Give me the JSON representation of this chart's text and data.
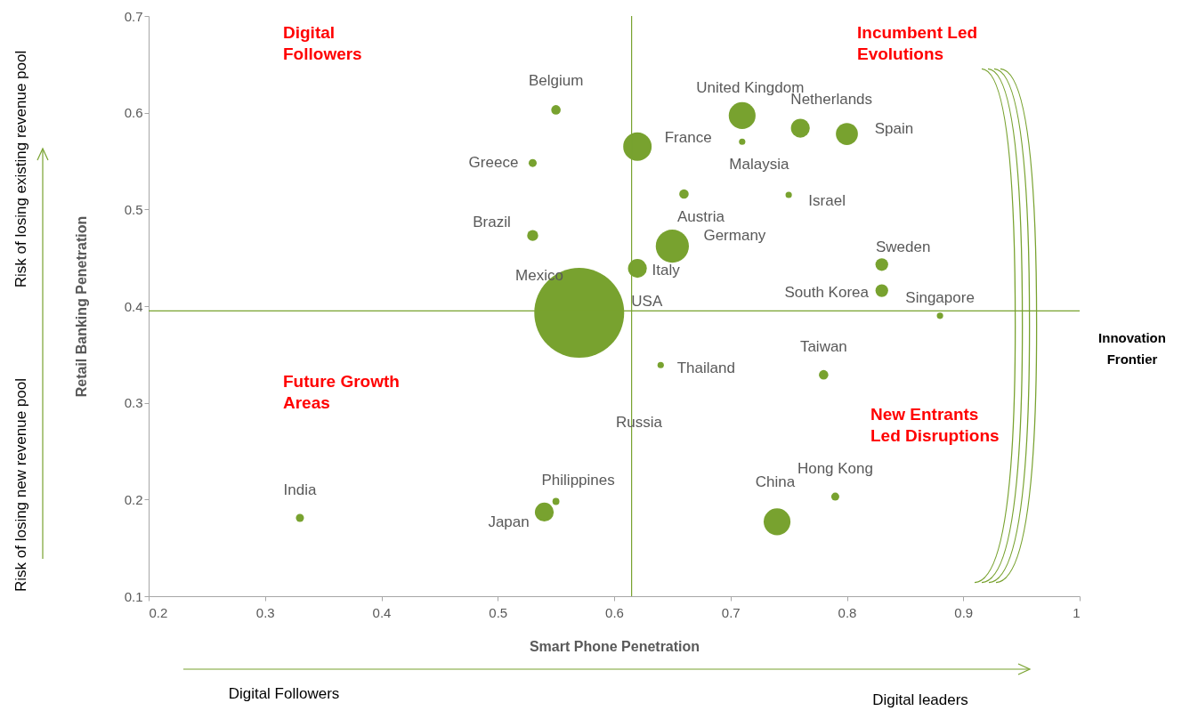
{
  "chart_data": {
    "type": "bubble",
    "xlabel": "Smart Phone Penetration",
    "ylabel": "Retail Banking Penetration",
    "xlim": [
      0.2,
      1
    ],
    "ylim": [
      0.1,
      0.7
    ],
    "xticks": [
      0.2,
      0.3,
      0.4,
      0.5,
      0.6,
      0.7,
      0.8,
      0.9,
      1
    ],
    "yticks": [
      0.1,
      0.2,
      0.3,
      0.4,
      0.5,
      0.6,
      0.7
    ],
    "marker": "circle",
    "series": [
      {
        "name": "India",
        "color": "#78a22f",
        "x": [
          0.33
        ],
        "values": [
          0.181
        ],
        "sizes": [
          0.008
        ]
      },
      {
        "name": "Belgium",
        "color": "#78a22f",
        "x": [
          0.55
        ],
        "values": [
          0.603
        ],
        "sizes": [
          0.011
        ]
      },
      {
        "name": "Greece",
        "color": "#78a22f",
        "x": [
          0.53
        ],
        "values": [
          0.548
        ],
        "sizes": [
          0.008
        ]
      },
      {
        "name": "Brazil",
        "color": "#78a22f",
        "x": [
          0.53
        ],
        "values": [
          0.473
        ],
        "sizes": [
          0.015
        ]
      },
      {
        "name": "France",
        "color": "#78a22f",
        "x": [
          0.62
        ],
        "values": [
          0.565
        ],
        "sizes": [
          0.1
        ]
      },
      {
        "name": "United Kingdom",
        "color": "#78a22f",
        "x": [
          0.71
        ],
        "values": [
          0.597
        ],
        "sizes": [
          0.089
        ]
      },
      {
        "name": "Malaysia",
        "color": "#78a22f",
        "x": [
          0.71
        ],
        "values": [
          0.57
        ],
        "sizes": [
          0.005
        ]
      },
      {
        "name": "Netherlands",
        "color": "#78a22f",
        "x": [
          0.76
        ],
        "values": [
          0.584
        ],
        "sizes": [
          0.044
        ]
      },
      {
        "name": "Spain",
        "color": "#78a22f",
        "x": [
          0.8
        ],
        "values": [
          0.578
        ],
        "sizes": [
          0.06
        ]
      },
      {
        "name": "Israel",
        "color": "#78a22f",
        "x": [
          0.75
        ],
        "values": [
          0.515
        ],
        "sizes": [
          0.005
        ]
      },
      {
        "name": "Austria",
        "color": "#78a22f",
        "x": [
          0.66
        ],
        "values": [
          0.516
        ],
        "sizes": [
          0.011
        ]
      },
      {
        "name": "Germany",
        "color": "#78a22f",
        "x": [
          0.65
        ],
        "values": [
          0.462
        ],
        "sizes": [
          0.136
        ]
      },
      {
        "name": "Italy",
        "color": "#78a22f",
        "x": [
          0.62
        ],
        "values": [
          0.439
        ],
        "sizes": [
          0.044
        ]
      },
      {
        "name": "USA",
        "color": "#78a22f",
        "x": [
          0.57
        ],
        "values": [
          0.393
        ],
        "sizes": [
          1
        ]
      },
      {
        "name": "Sweden",
        "color": "#78a22f",
        "x": [
          0.83
        ],
        "values": [
          0.443
        ],
        "sizes": [
          0.02
        ]
      },
      {
        "name": "South Korea",
        "color": "#78a22f",
        "x": [
          0.83
        ],
        "values": [
          0.416
        ],
        "sizes": [
          0.02
        ]
      },
      {
        "name": "Singapore",
        "color": "#78a22f",
        "x": [
          0.88
        ],
        "values": [
          0.39
        ],
        "sizes": [
          0.005
        ]
      },
      {
        "name": "Taiwan",
        "color": "#78a22f",
        "x": [
          0.78
        ],
        "values": [
          0.329
        ],
        "sizes": [
          0.011
        ]
      },
      {
        "name": "Thailand",
        "color": "#78a22f",
        "x": [
          0.64
        ],
        "values": [
          0.339
        ],
        "sizes": [
          0.005
        ]
      },
      {
        "name": "Hong Kong",
        "color": "#78a22f",
        "x": [
          0.79
        ],
        "values": [
          0.203
        ],
        "sizes": [
          0.008
        ]
      },
      {
        "name": "China",
        "color": "#78a22f",
        "x": [
          0.74
        ],
        "values": [
          0.177
        ],
        "sizes": [
          0.089
        ]
      },
      {
        "name": "Japan",
        "color": "#78a22f",
        "x": [
          0.54
        ],
        "values": [
          0.187
        ],
        "sizes": [
          0.044
        ]
      },
      {
        "name": "Philippines",
        "color": "#78a22f",
        "x": [
          0.55
        ],
        "values": [
          0.198
        ],
        "sizes": [
          0.006
        ]
      }
    ],
    "ref_lines": [
      {
        "axis": "x",
        "value": 0.615,
        "color": "#78a22f"
      },
      {
        "axis": "y",
        "value": 0.395,
        "color": "#78a22f"
      }
    ],
    "annotations": [
      "Digital\nFollowers",
      "Incumbent Led\nEvolutions",
      "Future Growth\nAreas",
      "New Entrants\nLed Disruptions",
      "Risk of losing existing revenue pool",
      "Risk of losing new revenue pool",
      "Digital Followers",
      "Digital leaders",
      "Innovation\nFrontier",
      "Mexico",
      "Russia"
    ]
  }
}
